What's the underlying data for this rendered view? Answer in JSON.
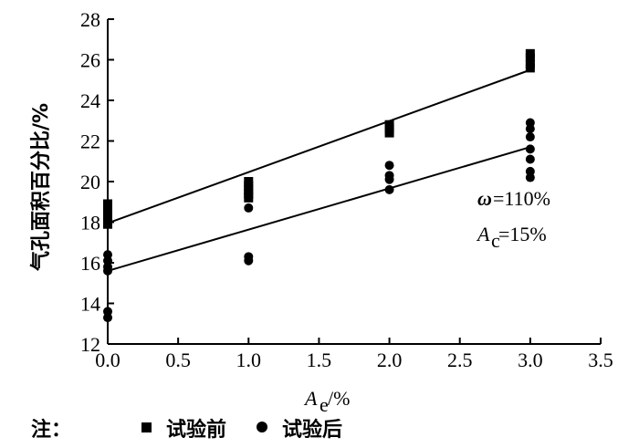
{
  "chart_data": {
    "type": "scatter",
    "xlabel": {
      "main": "A",
      "sub": "e",
      "unit": "/%"
    },
    "ylabel": "气孔面积百分比/%",
    "xlim": [
      0,
      3.5
    ],
    "ylim": [
      12,
      28
    ],
    "x_ticks": [
      "0.0",
      "0.5",
      "1.0",
      "1.5",
      "2.0",
      "2.5",
      "3.0",
      "3.5"
    ],
    "y_ticks": [
      "12",
      "14",
      "16",
      "18",
      "20",
      "22",
      "24",
      "26",
      "28"
    ],
    "series": [
      {
        "name": "试验前",
        "marker": "square",
        "points": [
          [
            0,
            18.9
          ],
          [
            0,
            18.5
          ],
          [
            0,
            18.2
          ],
          [
            0,
            17.9
          ],
          [
            1,
            20.0
          ],
          [
            1,
            19.8
          ],
          [
            1,
            19.6
          ],
          [
            1,
            19.4
          ],
          [
            1,
            19.2
          ],
          [
            2,
            22.8
          ],
          [
            2,
            22.6
          ],
          [
            2,
            22.4
          ],
          [
            3,
            26.3
          ],
          [
            3,
            26.1
          ],
          [
            3,
            25.8
          ],
          [
            3,
            25.6
          ]
        ],
        "fit": {
          "x": [
            0,
            3
          ],
          "y": [
            17.95,
            25.5
          ]
        }
      },
      {
        "name": "试验后",
        "marker": "circle",
        "points": [
          [
            0,
            16.4
          ],
          [
            0,
            16.1
          ],
          [
            0,
            15.8
          ],
          [
            0,
            15.6
          ],
          [
            0,
            13.6
          ],
          [
            0,
            13.3
          ],
          [
            1,
            19.4
          ],
          [
            1,
            19.2
          ],
          [
            1,
            18.7
          ],
          [
            1,
            16.3
          ],
          [
            1,
            16.1
          ],
          [
            2,
            20.8
          ],
          [
            2,
            20.3
          ],
          [
            2,
            20.1
          ],
          [
            2,
            19.6
          ],
          [
            3,
            22.9
          ],
          [
            3,
            22.6
          ],
          [
            3,
            22.2
          ],
          [
            3,
            21.6
          ],
          [
            3,
            21.1
          ],
          [
            3,
            20.5
          ],
          [
            3,
            20.2
          ]
        ],
        "fit": {
          "x": [
            0,
            3
          ],
          "y": [
            15.6,
            21.7
          ]
        }
      }
    ],
    "annotations": [
      {
        "symbol": "ω",
        "text": "=110%"
      },
      {
        "symbol": "A",
        "sub": "c",
        "text": "=15%"
      }
    ],
    "legend": {
      "prefix": "注：",
      "position": "bottom-left"
    },
    "grid": false
  }
}
